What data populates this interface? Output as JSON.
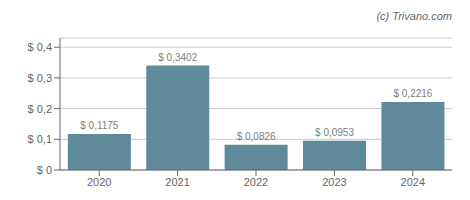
{
  "chart_data": {
    "type": "bar",
    "categories": [
      "2020",
      "2021",
      "2022",
      "2023",
      "2024"
    ],
    "values": [
      0.1175,
      0.3402,
      0.0826,
      0.0953,
      0.2216
    ],
    "value_labels": [
      "$ 0,1175",
      "$ 0,3402",
      "$ 0,0826",
      "$ 0,0953",
      "$ 0,2216"
    ],
    "data_labels": true,
    "color": "#5f8a9a",
    "ylim": [
      0,
      0.43
    ],
    "yticks": [
      {
        "value": 0,
        "label": "$ 0"
      },
      {
        "value": 0.1,
        "label": "$ 0,1"
      },
      {
        "value": 0.2,
        "label": "$ 0,2"
      },
      {
        "value": 0.3,
        "label": "$ 0,3"
      },
      {
        "value": 0.4,
        "label": "$ 0,4"
      }
    ],
    "grid": true,
    "annotation": "(c) Trivano.com"
  }
}
